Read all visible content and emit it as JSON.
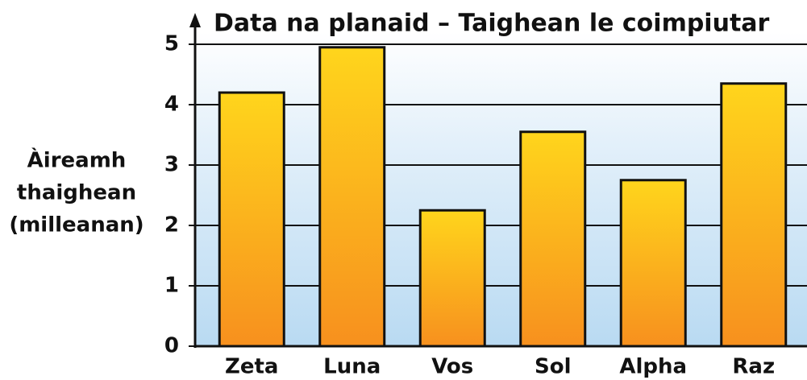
{
  "chart_data": {
    "type": "bar",
    "title": "Data na planaid – Taighean le coimpiutar",
    "ylabel": [
      "Àireamh",
      "thaighean",
      "(milleanan)"
    ],
    "categories": [
      "Zeta",
      "Luna",
      "Vos",
      "Sol",
      "Alpha",
      "Raz"
    ],
    "values": [
      4.2,
      4.95,
      2.25,
      3.55,
      2.75,
      4.35
    ],
    "color": "#f9a825",
    "ylim": [
      0,
      5
    ],
    "yticks": [
      0,
      1,
      2,
      3,
      4,
      5
    ],
    "grid": true
  }
}
